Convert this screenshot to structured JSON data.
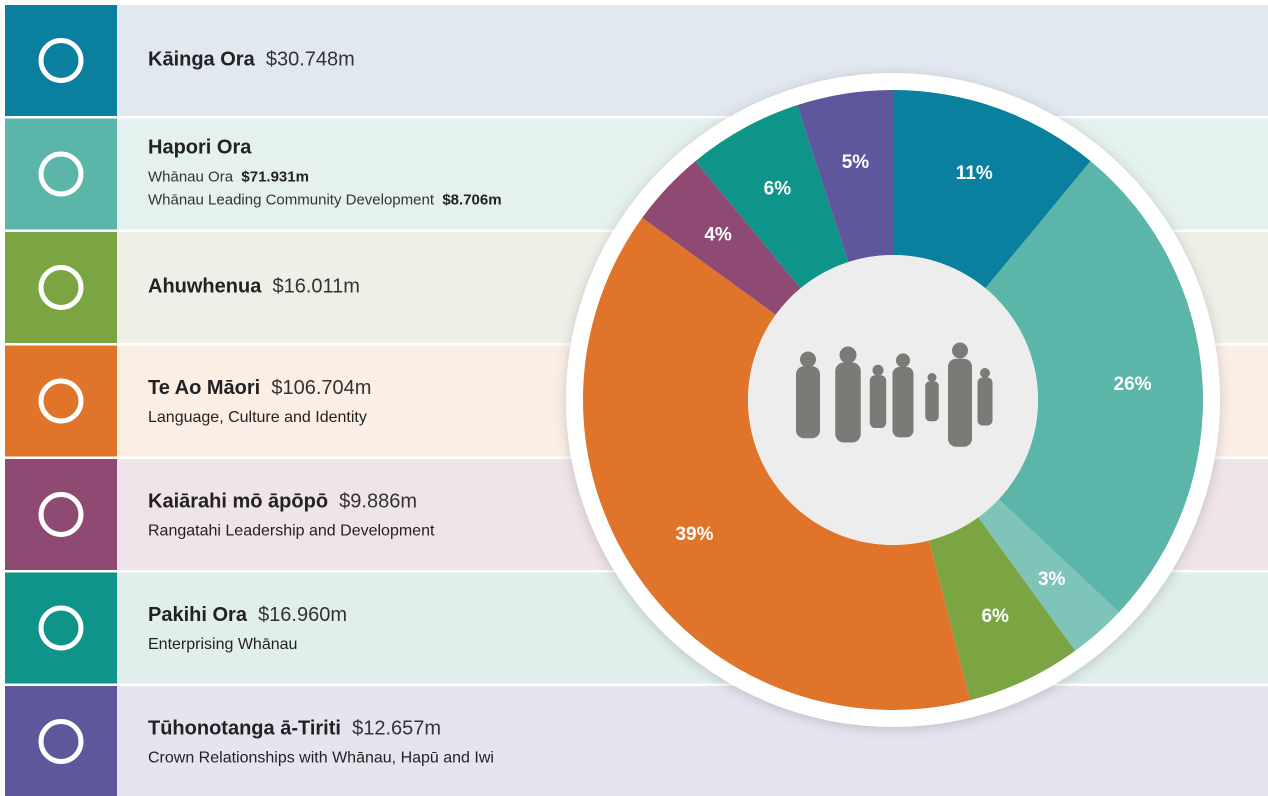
{
  "chart_data": {
    "type": "pie",
    "donut": true,
    "values": [
      11,
      26,
      3,
      6,
      39,
      4,
      6,
      5
    ],
    "value_labels": [
      "11%",
      "26%",
      "3%",
      "6%",
      "39%",
      "4%",
      "6%",
      "5%"
    ],
    "colors": [
      "#0b7f9e",
      "#5bb5a8",
      "#7fc4b9",
      "#7ba443",
      "#e0742a",
      "#8e4a72",
      "#0e9488",
      "#5e579b"
    ]
  },
  "rows": [
    {
      "title": "Kāinga Ora",
      "amount": "$30.748m",
      "color": "#0b7f9e",
      "background": "#e2e8ef"
    },
    {
      "title": "Hapori Ora",
      "color": "#5bb5a8",
      "background": "#e5f1ee",
      "items": [
        {
          "label": "Whānau Ora",
          "amount": "$71.931m"
        },
        {
          "label": "Whānau Leading Community Development",
          "amount": "$8.706m"
        }
      ]
    },
    {
      "title": "Ahuwhenua",
      "amount": "$16.011m",
      "color": "#7ba443",
      "background": "#eef0e8"
    },
    {
      "title": "Te Ao Māori",
      "amount": "$106.704m",
      "subtitle": "Language, Culture and Identity",
      "color": "#e0742a",
      "background": "#fbeee5"
    },
    {
      "title": "Kaiārahi mō āpōpō",
      "amount": "$9.886m",
      "subtitle": "Rangatahi Leadership and Development",
      "color": "#8e4a72",
      "background": "#efe4ea"
    },
    {
      "title": "Pakihi Ora",
      "amount": "$16.960m",
      "subtitle": "Enterprising Whānau",
      "color": "#0e9488",
      "background": "#e0eeec"
    },
    {
      "title": "Tūhonotanga ā-Tiriti",
      "amount": "$12.657m",
      "subtitle": "Crown Relationships with Whānau, Hapū and Iwi",
      "color": "#5e579b",
      "background": "#e6e4ef"
    }
  ]
}
